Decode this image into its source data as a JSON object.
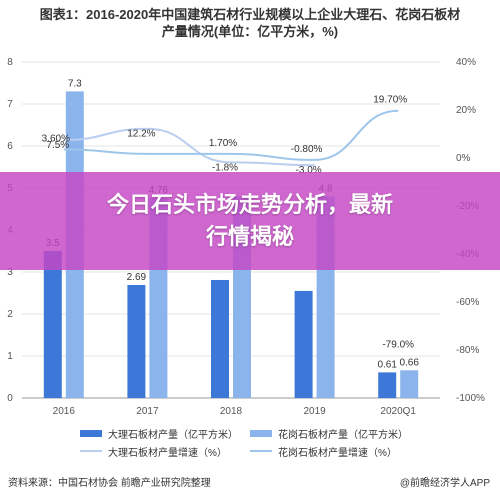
{
  "header": {
    "title_line1": "图表1：2016-2020年中国建筑石材行业规模以上企业大理石、花岗石板材",
    "title_line2": "产量情况(单位：亿平方米，%)"
  },
  "banner": {
    "line1": "今日石头市场走势分析，最新",
    "line2": "行情揭秘"
  },
  "footer": {
    "source": "资料来源：中国石材协会 前瞻产业研究院整理",
    "brand": "@前瞻经济学人APP"
  },
  "colors": {
    "marble_bar": "#3d78d8",
    "granite_bar": "#8cb4ec",
    "marble_line": "#b9cdef",
    "granite_line": "#9ec6ea"
  },
  "chart_data": {
    "type": "bar",
    "categories": [
      "2016",
      "2017",
      "2018",
      "2019",
      "2020Q1"
    ],
    "series": [
      {
        "name": "大理石板材产量（亿平方米）",
        "type": "bar",
        "axis": "left",
        "values": [
          3.5,
          2.69,
          2.81,
          2.55,
          0.61
        ],
        "labels": [
          "3.5",
          "2.69",
          "",
          "",
          "0.61"
        ]
      },
      {
        "name": "花岗石板材产量（亿平方米）",
        "type": "bar",
        "axis": "left",
        "values": [
          7.3,
          4.76,
          4.8,
          4.8,
          0.66
        ],
        "labels": [
          "7.3",
          "4.76",
          "",
          "4.8",
          "0.66"
        ]
      },
      {
        "name": "大理石板材产量增速（%）",
        "type": "line",
        "axis": "right",
        "values": [
          7.5,
          12.2,
          -1.8,
          -3.0,
          null
        ],
        "labels": [
          "7.5%",
          "12.2%",
          "-1.8%",
          "-3.0%",
          ""
        ]
      },
      {
        "name": "花岗石板材产量增速（%）",
        "type": "line",
        "axis": "right",
        "values": [
          3.6,
          1.7,
          1.7,
          -0.8,
          19.7
        ],
        "labels": [
          "3.60%",
          "",
          "1.70%",
          "-0.80%",
          "19.70%"
        ]
      }
    ],
    "extra_annotations": [
      {
        "category": "2020Q1",
        "text": "-79.0%",
        "axis": "right",
        "value": -79.0
      }
    ],
    "left_axis": {
      "ylim": [
        0,
        8
      ],
      "ticks": [
        "0",
        "1",
        "2",
        "3",
        "4",
        "5",
        "6",
        "7",
        "8"
      ]
    },
    "right_axis": {
      "ylim": [
        -100,
        40
      ],
      "ticks": [
        "-100%",
        "-80%",
        "-60%",
        "-40%",
        "-20%",
        "0%",
        "20%",
        "40%"
      ]
    },
    "grid": true,
    "legend_position": "bottom"
  }
}
